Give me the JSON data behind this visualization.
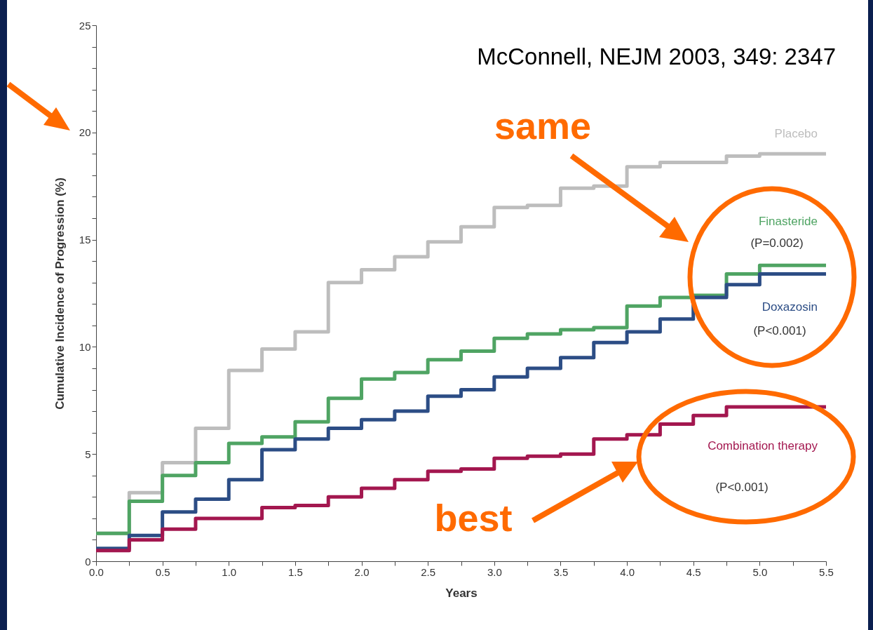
{
  "chart_data": {
    "type": "step",
    "xlabel": "Years",
    "ylabel": "Cumulative Incidence of Progression (%)",
    "x": [
      0,
      0.25,
      0.5,
      0.75,
      1,
      1.25,
      1.5,
      1.75,
      2,
      2.25,
      2.5,
      2.75,
      3,
      3.25,
      3.5,
      3.75,
      4,
      4.25,
      4.5,
      4.75,
      5,
      5.5
    ],
    "series": [
      {
        "name": "Placebo",
        "color": "#bdbdbd",
        "values": [
          1.3,
          3.2,
          4.6,
          6.2,
          8.9,
          9.9,
          10.7,
          13.0,
          13.6,
          14.2,
          14.9,
          15.6,
          16.5,
          16.6,
          17.4,
          17.5,
          18.4,
          18.6,
          18.6,
          18.9,
          19.0,
          19.0
        ]
      },
      {
        "name": "Finasteride",
        "color": "#4fa463",
        "values": [
          1.3,
          2.8,
          4.0,
          4.6,
          5.5,
          5.8,
          6.5,
          7.6,
          8.5,
          8.8,
          9.4,
          9.8,
          10.4,
          10.6,
          10.8,
          10.9,
          11.9,
          12.3,
          12.4,
          13.4,
          13.8,
          13.8
        ]
      },
      {
        "name": "Doxazosin",
        "color": "#2c4d85",
        "values": [
          0.6,
          1.2,
          2.3,
          2.9,
          3.8,
          5.2,
          5.7,
          6.2,
          6.6,
          7.0,
          7.7,
          8.0,
          8.6,
          9.0,
          9.5,
          10.2,
          10.7,
          11.3,
          12.3,
          12.9,
          13.4,
          13.4
        ]
      },
      {
        "name": "Combination therapy",
        "color": "#a3174f",
        "values": [
          0.5,
          1.0,
          1.5,
          2.0,
          2.0,
          2.5,
          2.6,
          3.0,
          3.4,
          3.8,
          4.2,
          4.3,
          4.8,
          4.9,
          5.0,
          5.7,
          5.9,
          6.4,
          6.8,
          7.2,
          7.2,
          7.2
        ]
      }
    ],
    "xlim": [
      0,
      5.5
    ],
    "xticks": [
      {
        "value": 0,
        "label": "0.0"
      },
      {
        "value": 0.25,
        "label": null
      },
      {
        "value": 0.5,
        "label": "0.5"
      },
      {
        "value": 0.75,
        "label": null
      },
      {
        "value": 1,
        "label": "1.0"
      },
      {
        "value": 1.25,
        "label": null
      },
      {
        "value": 1.5,
        "label": "1.5"
      },
      {
        "value": 1.75,
        "label": null
      },
      {
        "value": 2,
        "label": "2.0"
      },
      {
        "value": 2.25,
        "label": null
      },
      {
        "value": 2.5,
        "label": "2.5"
      },
      {
        "value": 2.75,
        "label": null
      },
      {
        "value": 3,
        "label": "3.0"
      },
      {
        "value": 3.25,
        "label": null
      },
      {
        "value": 3.5,
        "label": "3.5"
      },
      {
        "value": 3.75,
        "label": null
      },
      {
        "value": 4,
        "label": "4.0"
      },
      {
        "value": 4.25,
        "label": null
      },
      {
        "value": 4.5,
        "label": "4.5"
      },
      {
        "value": 4.75,
        "label": null
      },
      {
        "value": 5,
        "label": "5.0"
      },
      {
        "value": 5.25,
        "label": null
      },
      {
        "value": 5.5,
        "label": "5.5"
      }
    ],
    "ylim": [
      0,
      25
    ],
    "yticks": [
      0,
      {
        "value": 1,
        "label": null
      },
      {
        "value": 2,
        "label": null
      },
      {
        "value": 3,
        "label": null
      },
      {
        "value": 4,
        "label": null
      },
      5,
      {
        "value": 6,
        "label": null
      },
      {
        "value": 7,
        "label": null
      },
      {
        "value": 8,
        "label": null
      },
      {
        "value": 9,
        "label": null
      },
      10,
      {
        "value": 11,
        "label": null
      },
      {
        "value": 12,
        "label": null
      },
      {
        "value": 13,
        "label": null
      },
      {
        "value": 14,
        "label": null
      },
      15,
      {
        "value": 16,
        "label": null
      },
      {
        "value": 17,
        "label": null
      },
      {
        "value": 18,
        "label": null
      },
      {
        "value": 19,
        "label": null
      },
      20,
      {
        "value": 21,
        "label": null
      },
      {
        "value": 22,
        "label": null
      },
      {
        "value": 23,
        "label": null
      },
      {
        "value": 24,
        "label": null
      },
      25
    ],
    "grid": false,
    "legend": false,
    "annotations": [
      "McConnell, NEJM 2003,  349: 2347",
      "same",
      "best",
      "(P=0.002)",
      "(P<0.001)",
      "(P<0.001)"
    ]
  }
}
